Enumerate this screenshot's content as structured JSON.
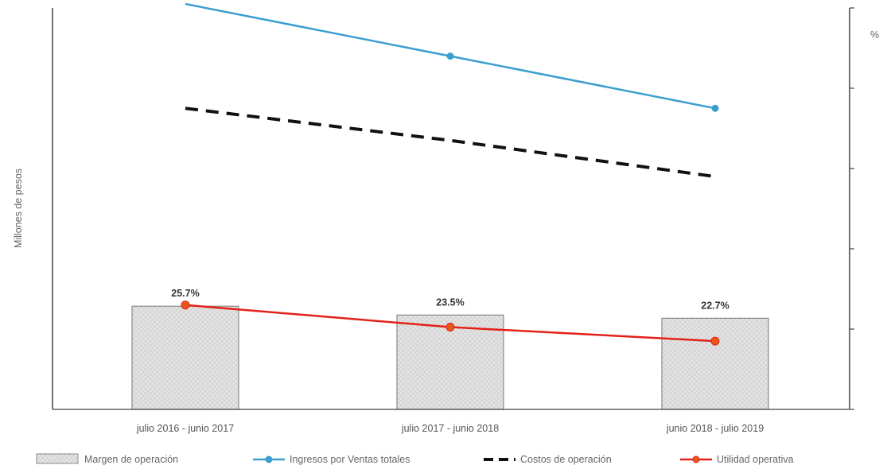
{
  "chart_data": {
    "type": "bar",
    "categories": [
      "julio 2016 - junio 2017",
      "julio 2017 - junio 2018",
      "junio 2018 - julio 2019"
    ],
    "ylabel": "Millones de pesos",
    "y2label": "%",
    "bar_series": {
      "name": "Margen de operación",
      "values": [
        25.7,
        23.5,
        22.7
      ],
      "labels": [
        "25.7%",
        "23.5%",
        "22.7%"
      ],
      "axis": "right",
      "color": "#e4e4e4"
    },
    "y2lim": [
      0,
      100
    ],
    "ylim": [
      0,
      100
    ],
    "line_series": [
      {
        "name": "Ingresos por Ventas totales",
        "values": [
          101,
          88,
          75
        ],
        "color": "#3a9fcf",
        "style": "solid",
        "markers": true
      },
      {
        "name": "Costos de operación",
        "values": [
          75,
          67,
          58
        ],
        "color": "#111111",
        "style": "dashed",
        "markers": false
      },
      {
        "name": "Utilidad operativa",
        "values": [
          26,
          20.5,
          17
        ],
        "color": "#e32119",
        "style": "solid",
        "markers": true
      }
    ],
    "legend_position": "bottom",
    "grid": false
  }
}
